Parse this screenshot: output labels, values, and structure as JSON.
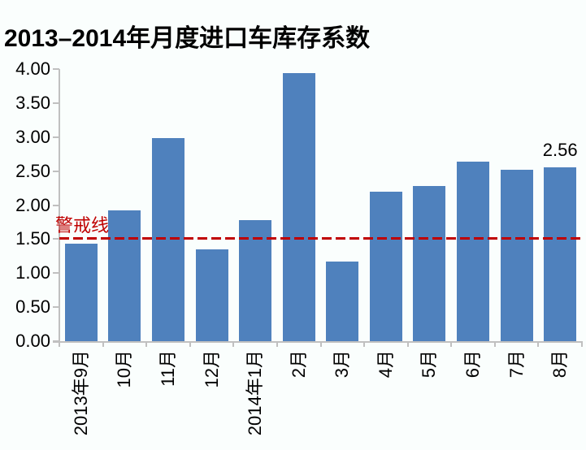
{
  "chart_data": {
    "type": "bar",
    "title": "2013–2014年月度进口车库存系数",
    "categories": [
      "2013年9月",
      "10月",
      "11月",
      "12月",
      "2014年1月",
      "2月",
      "3月",
      "4月",
      "5月",
      "6月",
      "7月",
      "8月"
    ],
    "values": [
      1.43,
      1.92,
      2.98,
      1.35,
      1.78,
      3.94,
      1.17,
      2.2,
      2.28,
      2.64,
      2.52,
      2.56
    ],
    "ylim": [
      0,
      4
    ],
    "ytick_step": 0.5,
    "ytick_decimals": 2,
    "grid": false,
    "legend": "none",
    "bar_color": "#4f81bd",
    "axis_color": "#c0c0c0",
    "background_color": "#fafefd",
    "annotations": [
      {
        "category_index": 11,
        "text": "2.56"
      }
    ],
    "warning_line": {
      "value": 1.5,
      "label": "警戒线",
      "color": "#c00000",
      "style": "dashed"
    }
  }
}
